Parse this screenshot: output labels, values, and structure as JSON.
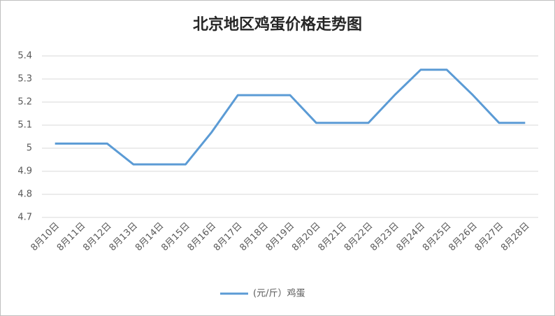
{
  "chart_data": {
    "type": "line",
    "title": "北京地区鸡蛋价格走势图",
    "categories": [
      "8月10日",
      "8月11日",
      "8月12日",
      "8月13日",
      "8月14日",
      "8月15日",
      "8月16日",
      "8月17日",
      "8月18日",
      "8月19日",
      "8月20日",
      "8月21日",
      "8月22日",
      "8月23日",
      "8月24日",
      "8月25日",
      "8月26日",
      "8月27日",
      "8月28日"
    ],
    "series": [
      {
        "name": "(元/斤）鸡蛋",
        "color": "#5b9bd5",
        "values": [
          5.02,
          5.02,
          5.02,
          4.93,
          4.93,
          4.93,
          5.07,
          5.23,
          5.23,
          5.23,
          5.11,
          5.11,
          5.11,
          5.23,
          5.34,
          5.34,
          5.23,
          5.11,
          5.11
        ]
      }
    ],
    "ylim": [
      4.7,
      5.4
    ],
    "yticks": [
      4.7,
      4.8,
      4.9,
      5,
      5.1,
      5.2,
      5.3,
      5.4
    ],
    "grid": true,
    "legend": "bottom"
  }
}
